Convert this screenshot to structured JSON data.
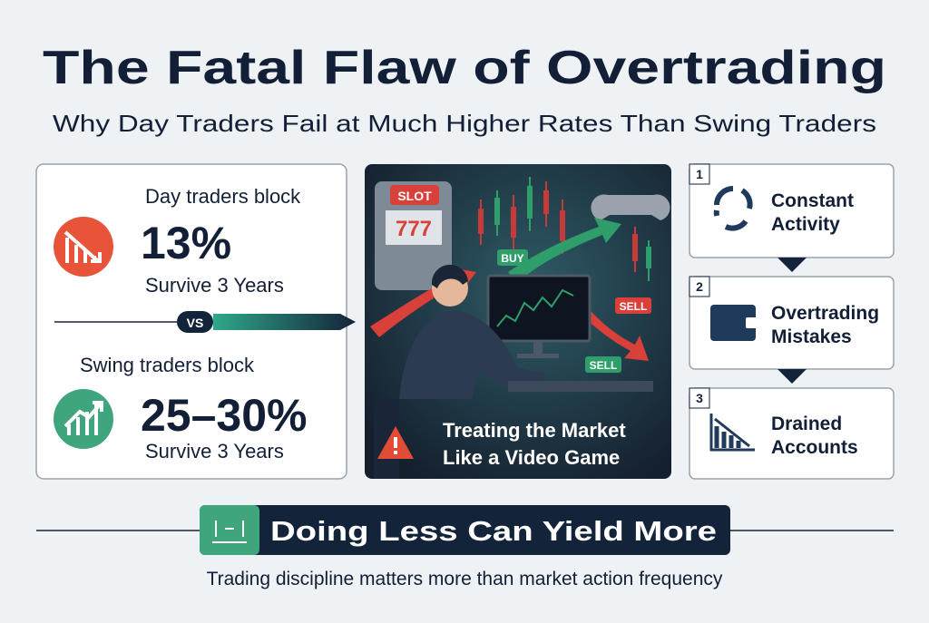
{
  "header": {
    "title": "The Fatal Flaw of Overtrading",
    "subtitle": "Why Day Traders Fail at Much Higher Rates Than Swing Traders"
  },
  "comparison": {
    "day": {
      "label": "Day traders block",
      "stat": "13%",
      "caption": "Survive 3 Years"
    },
    "versus": "VS",
    "swing": {
      "label": "Swing traders block",
      "stat": "25–30%",
      "caption": "Survive 3 Years"
    }
  },
  "illustration": {
    "slot_sign": "SLOT",
    "slot_reels": "777",
    "tags": [
      "BUY",
      "SELL",
      "SELL"
    ],
    "caption": [
      "Treating the Market",
      "Like a Video Game"
    ]
  },
  "steps": [
    {
      "number": "1",
      "lines": [
        "Constant",
        "Activity"
      ]
    },
    {
      "number": "2",
      "lines": [
        "Overtrading",
        "Mistakes"
      ]
    },
    {
      "number": "3",
      "lines": [
        "Drained",
        "Accounts"
      ]
    }
  ],
  "banner": {
    "text": "Doing Less Can Yield More"
  },
  "footer": "Trading discipline matters more than market action frequency"
}
